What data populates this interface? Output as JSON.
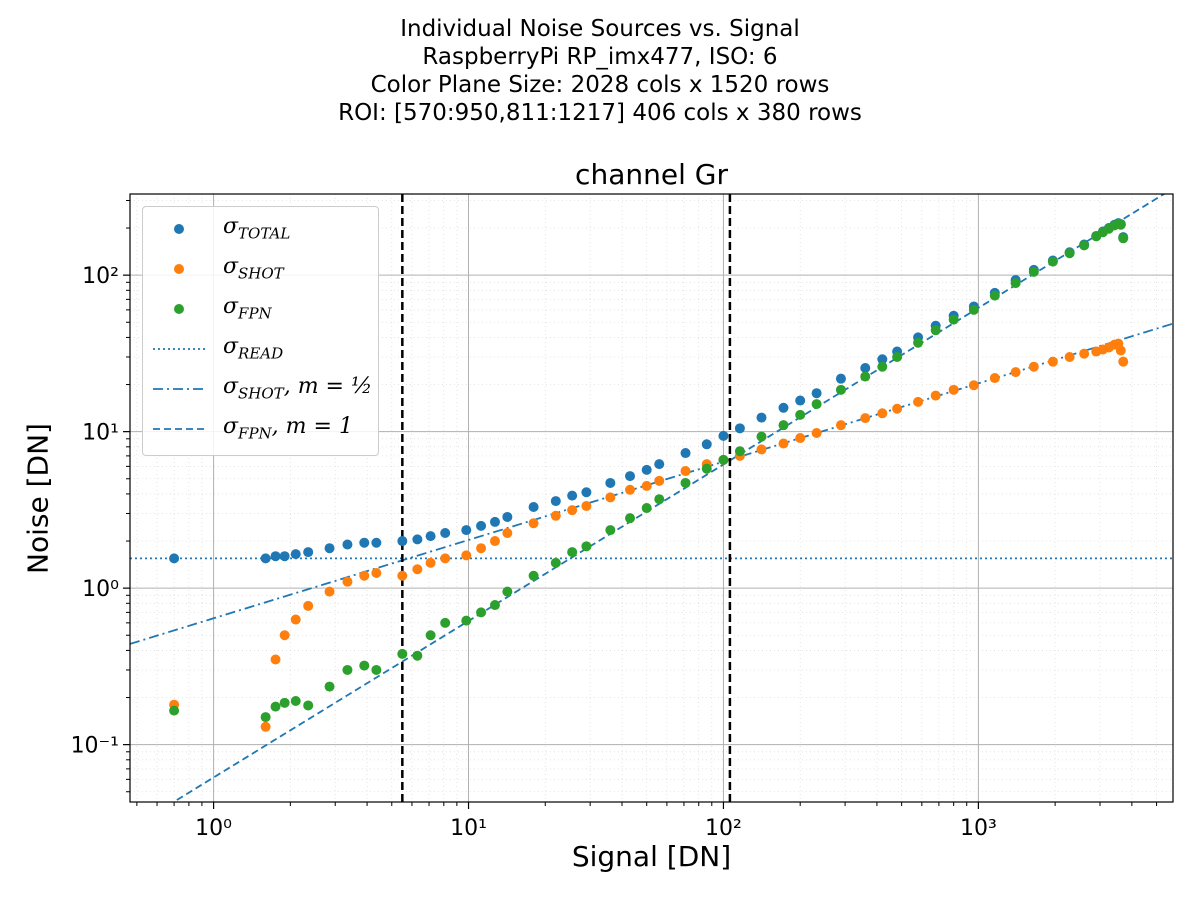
{
  "suptitle": [
    "Individual Noise Sources vs. Signal",
    "RaspberryPi RP_imx477, ISO: 6",
    "Color Plane Size: 2028 cols x 1520 rows",
    "ROI: [570:950,811:1217] 406 cols x 380 rows"
  ],
  "chart_data": {
    "type": "scatter",
    "title": "channel Gr",
    "xlabel": "Signal [DN]",
    "ylabel": "Noise [DN]",
    "xscale": "log",
    "yscale": "log",
    "xlim": [
      0.47,
      5800
    ],
    "ylim": [
      0.043,
      330
    ],
    "xticks": [
      "10⁰",
      "10¹",
      "10²",
      "10³"
    ],
    "yticks": [
      "10⁻¹",
      "10⁰",
      "10¹",
      "10²"
    ],
    "grid": true,
    "legend_position": "upper-left",
    "colors": {
      "total": "#1f77b4",
      "shot": "#ff7f0e",
      "fpn": "#2ca02c",
      "lines": "#1f77b4"
    },
    "vlines": [
      5.5,
      106
    ],
    "series": [
      {
        "name": "σTOTAL",
        "x": [
          0.7,
          1.6,
          1.75,
          1.9,
          2.1,
          2.35,
          2.85,
          3.35,
          3.9,
          4.35,
          5.5,
          6.3,
          7.1,
          8.1,
          9.8,
          11.2,
          12.7,
          14.2,
          18,
          22,
          25.5,
          29,
          36,
          43,
          50,
          56,
          71,
          86,
          100,
          116,
          141,
          172,
          200,
          232,
          289,
          360,
          420,
          480,
          580,
          680,
          800,
          960,
          1160,
          1400,
          1650,
          1960,
          2280,
          2600,
          2900,
          3080,
          3250,
          3420,
          3540,
          3620,
          3700
        ],
        "y": [
          1.55,
          1.55,
          1.6,
          1.6,
          1.65,
          1.7,
          1.8,
          1.9,
          1.95,
          1.95,
          2.0,
          2.05,
          2.15,
          2.25,
          2.35,
          2.5,
          2.65,
          2.85,
          3.3,
          3.6,
          3.9,
          4.1,
          4.7,
          5.2,
          5.7,
          6.2,
          7.3,
          8.3,
          9.4,
          10.5,
          12.3,
          14.2,
          15.8,
          17.6,
          21.8,
          25.5,
          29.0,
          32.5,
          40.0,
          47.5,
          55.0,
          63.0,
          77.0,
          93.0,
          108.0,
          124.0,
          140.0,
          157.0,
          178.0,
          190.0,
          200.0,
          210.0,
          215.0,
          212.0,
          175.0
        ]
      },
      {
        "name": "σSHOT",
        "x": [
          0.7,
          1.6,
          1.75,
          1.9,
          2.1,
          2.35,
          2.85,
          3.35,
          3.9,
          4.35,
          5.5,
          6.3,
          7.1,
          8.1,
          9.8,
          11.2,
          12.7,
          14.2,
          18,
          22,
          25.5,
          29,
          36,
          43,
          50,
          56,
          71,
          86,
          100,
          116,
          141,
          172,
          200,
          232,
          289,
          360,
          420,
          480,
          580,
          680,
          800,
          960,
          1160,
          1400,
          1650,
          1960,
          2280,
          2600,
          2900,
          3080,
          3250,
          3420,
          3540,
          3620,
          3700
        ],
        "y": [
          0.18,
          0.13,
          0.35,
          0.5,
          0.63,
          0.77,
          0.95,
          1.1,
          1.2,
          1.25,
          1.2,
          1.32,
          1.45,
          1.55,
          1.62,
          1.8,
          2.0,
          2.25,
          2.6,
          2.9,
          3.15,
          3.35,
          3.8,
          4.25,
          4.5,
          4.85,
          5.6,
          6.2,
          6.6,
          7.0,
          7.7,
          8.4,
          9.1,
          9.8,
          11.0,
          12.2,
          13.1,
          14.0,
          15.5,
          17.0,
          18.5,
          19.8,
          22.0,
          24.0,
          26.0,
          28.0,
          30.0,
          31.5,
          32.5,
          33.5,
          34.5,
          36.0,
          36.5,
          33.0,
          28.0
        ]
      },
      {
        "name": "σFPN",
        "x": [
          0.7,
          1.6,
          1.75,
          1.9,
          2.1,
          2.35,
          2.85,
          3.35,
          3.9,
          4.35,
          5.5,
          6.3,
          7.1,
          8.1,
          9.8,
          11.2,
          12.7,
          14.2,
          18,
          22,
          25.5,
          29,
          36,
          43,
          50,
          56,
          71,
          86,
          100,
          116,
          141,
          172,
          200,
          232,
          289,
          360,
          420,
          480,
          580,
          680,
          800,
          960,
          1160,
          1400,
          1650,
          1960,
          2280,
          2600,
          2900,
          3080,
          3250,
          3420,
          3540,
          3620,
          3700
        ],
        "y": [
          0.165,
          0.15,
          0.175,
          0.185,
          0.19,
          0.178,
          0.235,
          0.3,
          0.32,
          0.3,
          0.38,
          0.37,
          0.5,
          0.6,
          0.62,
          0.7,
          0.78,
          0.95,
          1.2,
          1.45,
          1.7,
          1.85,
          2.35,
          2.8,
          3.25,
          3.7,
          4.7,
          5.8,
          6.6,
          7.5,
          9.3,
          11.0,
          12.8,
          15.0,
          18.5,
          22.5,
          26.0,
          30.0,
          37.0,
          44.5,
          52.0,
          60.0,
          74.0,
          89.0,
          105.0,
          122.0,
          138.0,
          155.0,
          177.0,
          188.0,
          198.0,
          208.0,
          213.0,
          210.0,
          172.0
        ]
      },
      {
        "name": "σREAD",
        "kind": "hline",
        "y": 1.55
      },
      {
        "name": "σSHOT, m = 1/2",
        "kind": "line",
        "slope": 0.5,
        "x": [
          0.47,
          5800
        ],
        "y": [
          0.44,
          49.0
        ]
      },
      {
        "name": "σFPN, m = 1",
        "kind": "line",
        "slope": 1.0,
        "x": [
          0.47,
          5800
        ],
        "y": [
          0.029,
          358.0
        ]
      }
    ],
    "legend": [
      {
        "sub": "TOTAL",
        "marker": "dot",
        "color": "#1f77b4"
      },
      {
        "sub": "SHOT",
        "marker": "dot",
        "color": "#ff7f0e"
      },
      {
        "sub": "FPN",
        "marker": "dot",
        "color": "#2ca02c"
      },
      {
        "sub": "READ",
        "marker": "dotted",
        "color": "#1f77b4"
      },
      {
        "sub": "SHOT",
        "suffix": ", m = ½",
        "marker": "dashdot",
        "color": "#1f77b4"
      },
      {
        "sub": "FPN",
        "suffix": ", m = 1",
        "marker": "dashed",
        "color": "#1f77b4"
      }
    ]
  }
}
